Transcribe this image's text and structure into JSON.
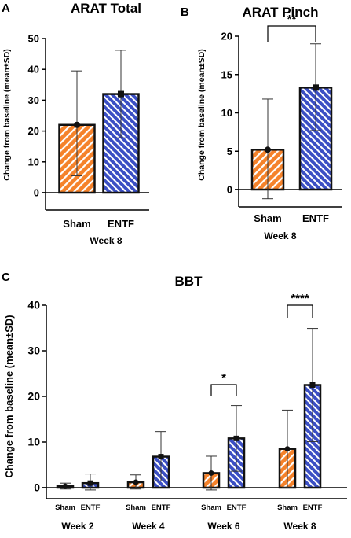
{
  "colors": {
    "sham": "#f5822a",
    "entf": "#3b4fc4",
    "stripe": "#ffffff"
  },
  "chart_data": [
    {
      "type": "bar",
      "panel": "A",
      "title": "ARAT Total",
      "ylabel": "Change from baseline (mean±SD)",
      "ylim": [
        0,
        50
      ],
      "yticks": [
        "0",
        "10",
        "20",
        "30",
        "40",
        "50"
      ],
      "categories": [
        "Sham",
        "ENTF"
      ],
      "group_label": "Week 8",
      "values": [
        22,
        32
      ],
      "err_upper": [
        39.5,
        46.2
      ],
      "err_lower": [
        5.5,
        17.8
      ],
      "significance": []
    },
    {
      "type": "bar",
      "panel": "B",
      "title": "ARAT Pinch",
      "ylabel": "Change from baseline (mean±SD)",
      "ylim": [
        0,
        20
      ],
      "yticks": [
        "0",
        "5",
        "10",
        "15",
        "20"
      ],
      "categories": [
        "Sham",
        "ENTF"
      ],
      "group_label": "Week 8",
      "values": [
        5.2,
        13.3
      ],
      "err_upper": [
        11.8,
        19.0
      ],
      "err_lower": [
        -1.2,
        7.7
      ],
      "significance": [
        "**"
      ]
    },
    {
      "type": "bar",
      "panel": "C",
      "title": "BBT",
      "ylabel": "Change from baseline (mean±SD)",
      "ylim": [
        0,
        40
      ],
      "yticks": [
        "0",
        "10",
        "20",
        "30",
        "40"
      ],
      "categories": [
        "Sham",
        "ENTF"
      ],
      "groups": [
        {
          "label": "Week 2",
          "values": [
            0.3,
            1.0
          ],
          "err_upper": [
            1.0,
            3.0
          ],
          "err_lower": [
            -0.3,
            -0.5
          ],
          "sig": ""
        },
        {
          "label": "Week 4",
          "values": [
            1.2,
            6.8
          ],
          "err_upper": [
            2.8,
            12.3
          ],
          "err_lower": [
            -0.3,
            1.5
          ],
          "sig": ""
        },
        {
          "label": "Week 6",
          "values": [
            3.2,
            10.8
          ],
          "err_upper": [
            6.9,
            18.0
          ],
          "err_lower": [
            -0.5,
            3.6
          ],
          "sig": "*"
        },
        {
          "label": "Week 8",
          "values": [
            8.5,
            22.5
          ],
          "err_upper": [
            17.0,
            34.9
          ],
          "err_lower": [
            0.0,
            10.1
          ],
          "sig": "****"
        }
      ]
    }
  ]
}
